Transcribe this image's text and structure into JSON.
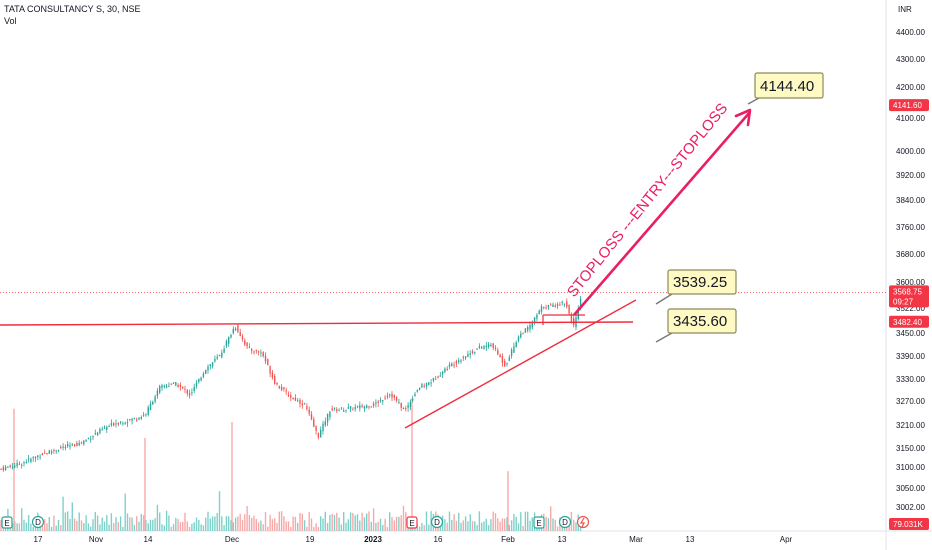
{
  "header": {
    "symbol_line": "TATA CONSULTANCY S, 30, NSE",
    "volume_label": "Vol"
  },
  "currency_label": "INR",
  "colors": {
    "up": "#26a69a",
    "down": "#ef5350",
    "volume_up": "#7ed1ca",
    "volume_down": "#f7a9a7",
    "annotation": "#e91e63",
    "support_line": "#ef2b3c",
    "callout_bg": "#fff9c4",
    "callout_border": "#8a8a5c",
    "price_tag": "#f23645",
    "event_icon": "#26a69a",
    "event_icon_red": "#f23645"
  },
  "chart_data": {
    "type": "candlestick",
    "price_axis": {
      "ticks": [
        3002,
        3050,
        3100,
        3150,
        3210,
        3270,
        3330,
        3390,
        3450,
        3522,
        3600,
        3680,
        3760,
        3840,
        3920,
        4000,
        4100,
        4200,
        4300,
        4400
      ],
      "tick_labels": [
        "3002.00",
        "3050.00",
        "3100.00",
        "3150.00",
        "3210.00",
        "3270.00",
        "3330.00",
        "3390.00",
        "3450.00",
        "3522.00",
        "3600.00",
        "3680.00",
        "3760.00",
        "3840.00",
        "3920.00",
        "4000.00",
        "4100.00",
        "4200.00",
        "4300.00",
        "4400.00"
      ]
    },
    "time_axis": {
      "labels": [
        "17",
        "Nov",
        "14",
        "Dec",
        "19",
        "2023",
        "16",
        "Feb",
        "13",
        "Mar",
        "13",
        "Apr"
      ],
      "bold": [
        false,
        false,
        false,
        false,
        false,
        true,
        false,
        false,
        false,
        false,
        false,
        false
      ]
    },
    "price_path": [
      [
        0,
        3095
      ],
      [
        20,
        3108
      ],
      [
        40,
        3132
      ],
      [
        60,
        3150
      ],
      [
        80,
        3162
      ],
      [
        100,
        3195
      ],
      [
        115,
        3215
      ],
      [
        130,
        3222
      ],
      [
        145,
        3235
      ],
      [
        160,
        3308
      ],
      [
        175,
        3318
      ],
      [
        190,
        3288
      ],
      [
        205,
        3355
      ],
      [
        220,
        3392
      ],
      [
        235,
        3470
      ],
      [
        248,
        3408
      ],
      [
        262,
        3398
      ],
      [
        275,
        3320
      ],
      [
        290,
        3282
      ],
      [
        305,
        3260
      ],
      [
        318,
        3180
      ],
      [
        330,
        3248
      ],
      [
        345,
        3250
      ],
      [
        360,
        3255
      ],
      [
        375,
        3262
      ],
      [
        390,
        3290
      ],
      [
        405,
        3245
      ],
      [
        418,
        3305
      ],
      [
        432,
        3325
      ],
      [
        448,
        3362
      ],
      [
        462,
        3385
      ],
      [
        478,
        3410
      ],
      [
        492,
        3420
      ],
      [
        505,
        3365
      ],
      [
        518,
        3440
      ],
      [
        530,
        3470
      ],
      [
        542,
        3525
      ],
      [
        555,
        3530
      ],
      [
        565,
        3540
      ],
      [
        574,
        3468
      ],
      [
        582,
        3562
      ]
    ],
    "volume_spikes": [
      {
        "x": 14,
        "v": 0.92
      },
      {
        "x": 145,
        "v": 0.7
      },
      {
        "x": 232,
        "v": 0.82
      },
      {
        "x": 412,
        "v": 1.0
      },
      {
        "x": 508,
        "v": 0.45
      }
    ],
    "last_price": {
      "label": "3568.75",
      "sublabel": "09:27",
      "value": 3568.75
    },
    "price_tags": [
      {
        "value": 4141.6,
        "label": "4141.60"
      },
      {
        "value": 3482.4,
        "label": "3482.40"
      }
    ],
    "volume_tag": {
      "label": "79.031K"
    },
    "annotations": {
      "callouts": [
        {
          "label": "4144.40"
        },
        {
          "label": "3539.25"
        },
        {
          "label": "3435.60"
        }
      ],
      "diagonal_text": "STOPLOSS ---ENTRY---STOPLOSS"
    },
    "events": [
      {
        "type": "E"
      },
      {
        "type": "D"
      },
      {
        "type": "E",
        "red": true
      },
      {
        "type": "D"
      },
      {
        "type": "E"
      },
      {
        "type": "D"
      },
      {
        "type": "split"
      }
    ]
  }
}
